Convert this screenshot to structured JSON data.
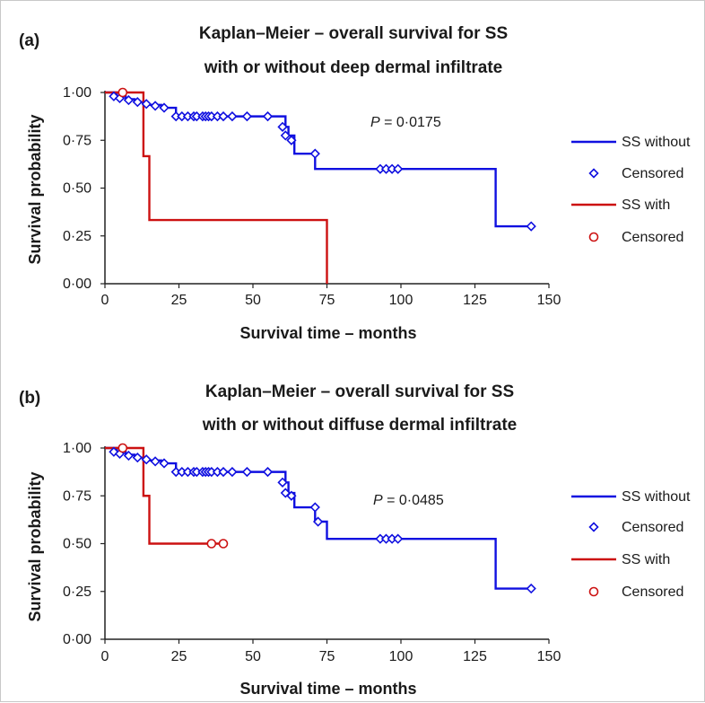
{
  "chart_data": [
    {
      "type": "line",
      "panel_label": "(a)",
      "title_line1": "Kaplan–Meier – overall survival for SS",
      "title_line2": "with or without deep dermal infiltrate",
      "xlabel": "Survival time – months",
      "ylabel": "Survival probability",
      "xlim": [
        0,
        150
      ],
      "ylim": [
        0,
        1
      ],
      "x_ticks": [
        "0",
        "25",
        "50",
        "75",
        "100",
        "125",
        "150"
      ],
      "y_ticks": [
        "0·00",
        "0·25",
        "0·50",
        "0·75",
        "1·00"
      ],
      "grid": false,
      "legend_position": "right",
      "p_italic": "P",
      "p_text": " = 0·0175",
      "series": [
        {
          "name": "SS without",
          "color": "#1010e0",
          "step_x": [
            0,
            4,
            7,
            10,
            14,
            19,
            24,
            60,
            61,
            62,
            64,
            70,
            71,
            75,
            132,
            144
          ],
          "step_y": [
            1.0,
            0.98,
            0.965,
            0.95,
            0.935,
            0.92,
            0.875,
            0.875,
            0.82,
            0.775,
            0.68,
            0.68,
            0.6,
            0.6,
            0.3,
            0.3
          ]
        },
        {
          "name": "SS with",
          "color": "#cc1111",
          "step_x": [
            0,
            13,
            15,
            75,
            75
          ],
          "step_y": [
            1.0,
            0.667,
            0.333,
            0.333,
            0.0
          ]
        }
      ],
      "censored": [
        {
          "name": "Censored",
          "marker": "diamond",
          "color": "#1010e0",
          "x": [
            3,
            5,
            8,
            11,
            14,
            17,
            20,
            24,
            26,
            28,
            30,
            31,
            33,
            34,
            35,
            36,
            38,
            40,
            43,
            48,
            55,
            60,
            61,
            63,
            71,
            93,
            95,
            97,
            99,
            144
          ],
          "y": [
            0.98,
            0.97,
            0.96,
            0.95,
            0.94,
            0.93,
            0.92,
            0.875,
            0.875,
            0.875,
            0.875,
            0.875,
            0.875,
            0.875,
            0.875,
            0.875,
            0.875,
            0.875,
            0.875,
            0.875,
            0.875,
            0.82,
            0.775,
            0.75,
            0.68,
            0.6,
            0.6,
            0.6,
            0.6,
            0.3
          ]
        },
        {
          "name": "Censored",
          "marker": "circle",
          "color": "#cc1111",
          "x": [
            6
          ],
          "y": [
            1.0
          ]
        }
      ]
    },
    {
      "type": "line",
      "panel_label": "(b)",
      "title_line1": "Kaplan–Meier – overall survival for SS",
      "title_line2": "with or without diffuse dermal infiltrate",
      "xlabel": "Survival time – months",
      "ylabel": "Survival probability",
      "xlim": [
        0,
        150
      ],
      "ylim": [
        0,
        1
      ],
      "x_ticks": [
        "0",
        "25",
        "50",
        "75",
        "100",
        "125",
        "150"
      ],
      "y_ticks": [
        "0·00",
        "0·25",
        "0·50",
        "0·75",
        "1·00"
      ],
      "grid": false,
      "legend_position": "right",
      "p_italic": "P",
      "p_text": " = 0·0485",
      "series": [
        {
          "name": "SS without",
          "color": "#1010e0",
          "step_x": [
            0,
            4,
            7,
            10,
            14,
            19,
            24,
            60,
            61,
            62,
            64,
            70,
            71,
            73,
            75,
            132,
            144
          ],
          "step_y": [
            1.0,
            0.98,
            0.965,
            0.95,
            0.935,
            0.92,
            0.875,
            0.875,
            0.82,
            0.765,
            0.69,
            0.69,
            0.615,
            0.615,
            0.525,
            0.265,
            0.265
          ]
        },
        {
          "name": "SS with",
          "color": "#cc1111",
          "step_x": [
            0,
            13,
            15,
            40
          ],
          "step_y": [
            1.0,
            0.75,
            0.5,
            0.5
          ]
        }
      ],
      "censored": [
        {
          "name": "Censored",
          "marker": "diamond",
          "color": "#1010e0",
          "x": [
            3,
            5,
            8,
            11,
            14,
            17,
            20,
            24,
            26,
            28,
            30,
            31,
            33,
            34,
            35,
            36,
            38,
            40,
            43,
            48,
            55,
            60,
            61,
            63,
            71,
            72,
            93,
            95,
            97,
            99,
            144
          ],
          "y": [
            0.98,
            0.97,
            0.96,
            0.95,
            0.94,
            0.93,
            0.92,
            0.875,
            0.875,
            0.875,
            0.875,
            0.875,
            0.875,
            0.875,
            0.875,
            0.875,
            0.875,
            0.875,
            0.875,
            0.875,
            0.875,
            0.82,
            0.765,
            0.75,
            0.69,
            0.615,
            0.525,
            0.525,
            0.525,
            0.525,
            0.265
          ]
        },
        {
          "name": "Censored",
          "marker": "circle",
          "color": "#cc1111",
          "x": [
            6,
            36,
            40
          ],
          "y": [
            1.0,
            0.5,
            0.5
          ]
        }
      ]
    }
  ]
}
